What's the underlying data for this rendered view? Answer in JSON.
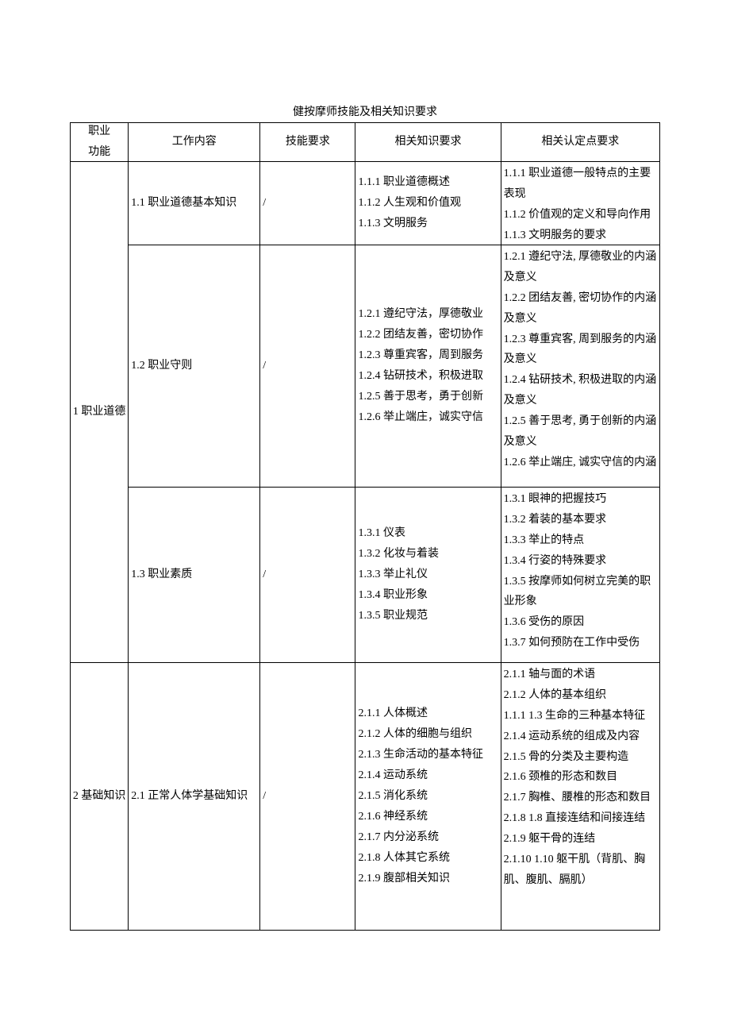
{
  "title": "健按摩师技能及相关知识要求",
  "header": {
    "c0": "职业\n功能",
    "c1": "工作内容",
    "c2": "技能要求",
    "c3": "相关知识要求",
    "c4": "相关认定点要求"
  },
  "rows": [
    {
      "func": "1 职业道德",
      "func_rowspan": 3,
      "work": "1.1 职业道德基本知识",
      "skill": "/",
      "know": "1.1.1 职业道德概述\n1.1.2 人生观和价值观\n1.1.3 文明服务",
      "cert": "1.1.1 职业道德一般特点的主要表现\n1.1.2 价值观的定义和导向作用\n1.1.3 文明服务的要求",
      "h": "h-100"
    },
    {
      "work": "1.2 职业守则",
      "skill": "/",
      "know": "1.2.1 遵纪守法，厚德敬业\n1.2.2 团结友善，密切协作\n1.2.3 尊重宾客，周到服务\n1.2.4 钻研技术，积极进取\n1.2.5 善于思考，勇于创新\n1.2.6 举止端庄，诚实守信",
      "cert": "1.2.1 遵纪守法, 厚德敬业的内涵及意义\n1.2.2 团结友善, 密切协作的内涵及意义\n1.2.3 尊重宾客, 周到服务的内涵及意义\n1.2.4 钻研技术, 积极进取的内涵及意义\n1.2.5 善于思考, 勇于创新的内涵及意义\n1.2.6 举止端庄, 诚实守信的内涵",
      "h": "h-300"
    },
    {
      "work": "1.3 职业素质",
      "skill": "/",
      "know": "1.3.1 仪表\n1.3.2 化妆与着装\n1.3.3 举止礼仪\n1.3.4 职业形象\n1.3.5 职业规范",
      "cert": "1.3.1    眼神的把握技巧\n1.3.2    着装的基本要求\n1.3.3    举止的特点\n1.3.4    行姿的特殊要求\n1.3.5    按摩师如何树立完美的职业形象\n1.3.6    受伤的原因\n1.3.7    如何预防在工作中受伤",
      "h": "h-215"
    },
    {
      "func": "2 基础知识",
      "func_rowspan": 1,
      "work": "2.1 正常人体学基础知识",
      "skill": "/",
      "know": "2.1.1 人体概述\n2.1.2 人体的细胞与组织\n2.1.3 生命活动的基本特征\n2.1.4 运动系统\n2.1.5 消化系统\n2.1.6 神经系统\n2.1.7 内分泌系统\n2.1.8 人体其它系统\n2.1.9 腹部相关知识",
      "cert": "2.1.1 轴与面的术语\n2.1.2 人体的基本组织\n1.1.1      1.3 生命的三种基本特征\n2.1.4    运动系统的组成及内容\n2.1.5    骨的分类及主要构造\n2.1.6    颈椎的形态和数目\n2.1.7    胸椎、腰椎的形态和数目\n2.1.8      1.8 直接连结和间接连结\n2.1.9    躯干骨的连结\n2.1.10      1.10 躯干肌（背肌、胸肌、腹肌、膈肌）",
      "h": "h-330"
    }
  ]
}
